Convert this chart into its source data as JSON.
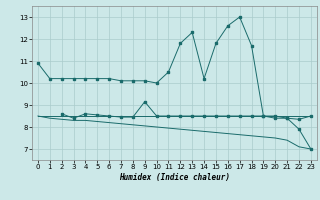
{
  "title": "",
  "xlabel": "Humidex (Indice chaleur)",
  "background_color": "#cce8e8",
  "grid_color": "#aacccc",
  "line_color": "#1a6b6b",
  "xlim": [
    -0.5,
    23.5
  ],
  "ylim": [
    6.5,
    13.5
  ],
  "xticks": [
    0,
    1,
    2,
    3,
    4,
    5,
    6,
    7,
    8,
    9,
    10,
    11,
    12,
    13,
    14,
    15,
    16,
    17,
    18,
    19,
    20,
    21,
    22,
    23
  ],
  "yticks": [
    7,
    8,
    9,
    10,
    11,
    12,
    13
  ],
  "line1_x": [
    0,
    1,
    2,
    3,
    4,
    5,
    6,
    7,
    8,
    9,
    10,
    11,
    12,
    13,
    14,
    15,
    16,
    17,
    18,
    19,
    20,
    21,
    22,
    23
  ],
  "line1_y": [
    10.9,
    10.2,
    10.2,
    10.2,
    10.2,
    10.2,
    10.2,
    10.1,
    10.1,
    10.1,
    10.0,
    10.5,
    11.8,
    12.3,
    10.2,
    11.8,
    12.6,
    13.0,
    11.7,
    8.5,
    8.4,
    8.4,
    7.9,
    7.0
  ],
  "line2_x": [
    2,
    3,
    4,
    5,
    6,
    7,
    8,
    9,
    10,
    11,
    12,
    13,
    14,
    15,
    16,
    17,
    18,
    19,
    20,
    21,
    22,
    23
  ],
  "line2_y": [
    8.6,
    8.4,
    8.6,
    8.55,
    8.5,
    8.45,
    8.45,
    9.15,
    8.5,
    8.5,
    8.5,
    8.5,
    8.5,
    8.5,
    8.5,
    8.5,
    8.5,
    8.5,
    8.5,
    8.4,
    8.35,
    8.5
  ],
  "line3_x": [
    0,
    1,
    2,
    3,
    4,
    5,
    6,
    7,
    8,
    9,
    10,
    11,
    12,
    13,
    14,
    15,
    16,
    17,
    18,
    19,
    20,
    21,
    22,
    23
  ],
  "line3_y": [
    8.5,
    8.5,
    8.5,
    8.5,
    8.5,
    8.5,
    8.5,
    8.5,
    8.5,
    8.5,
    8.5,
    8.5,
    8.5,
    8.5,
    8.5,
    8.5,
    8.5,
    8.5,
    8.5,
    8.5,
    8.5,
    8.5,
    8.5,
    8.5
  ],
  "line4_x": [
    0,
    1,
    2,
    3,
    4,
    5,
    6,
    7,
    8,
    9,
    10,
    11,
    12,
    13,
    14,
    15,
    16,
    17,
    18,
    19,
    20,
    21,
    22,
    23
  ],
  "line4_y": [
    8.5,
    8.4,
    8.35,
    8.3,
    8.3,
    8.25,
    8.2,
    8.15,
    8.1,
    8.05,
    8.0,
    7.95,
    7.9,
    7.85,
    7.8,
    7.75,
    7.7,
    7.65,
    7.6,
    7.55,
    7.5,
    7.4,
    7.1,
    7.0
  ]
}
